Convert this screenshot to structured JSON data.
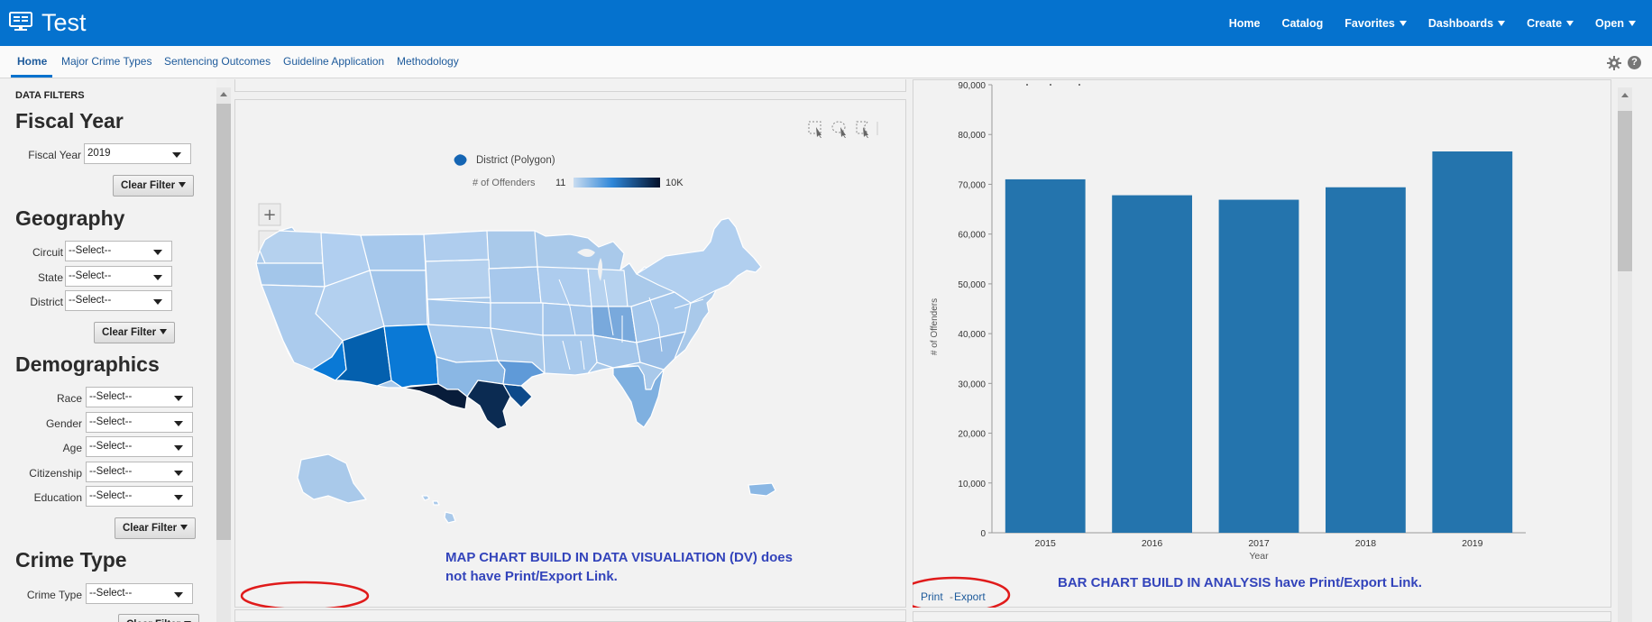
{
  "app": {
    "title": "Test"
  },
  "topnav": [
    {
      "label": "Home",
      "has_caret": false
    },
    {
      "label": "Catalog",
      "has_caret": false
    },
    {
      "label": "Favorites",
      "has_caret": true
    },
    {
      "label": "Dashboards",
      "has_caret": true
    },
    {
      "label": "Create",
      "has_caret": true
    },
    {
      "label": "Open",
      "has_caret": true
    }
  ],
  "tabs": [
    "Home",
    "Major Crime Types",
    "Sentencing Outcomes",
    "Guideline Application",
    "Methodology"
  ],
  "sidebar": {
    "header": "DATA FILTERS",
    "fiscal_year": {
      "heading": "Fiscal Year",
      "label": "Fiscal Year",
      "value": "2019"
    },
    "geography": {
      "heading": "Geography",
      "circuit_label": "Circuit",
      "state_label": "State",
      "district_label": "District"
    },
    "demographics": {
      "heading": "Demographics",
      "race_label": "Race",
      "gender_label": "Gender",
      "age_label": "Age",
      "citizenship_label": "Citizenship",
      "education_label": "Education"
    },
    "crime_type": {
      "heading": "Crime Type",
      "label": "Crime Type"
    },
    "select_placeholder": "--Select--",
    "clear_filter": "Clear Filter"
  },
  "map": {
    "legend_polygon_label": "District (Polygon)",
    "legend_measure_label": "# of Offenders",
    "legend_min": "11",
    "legend_max": "10K",
    "zoom_in": "+",
    "zoom_out": "−",
    "annotation_line1": "MAP CHART BUILD IN DATA VISUALIATION (DV) does",
    "annotation_line2": "not have Print/Export Link.",
    "colors": {
      "light": "#a9c9ea",
      "mid": "#0a79d6",
      "dark": "#0b2545",
      "accent": "#1565b3"
    }
  },
  "bar": {
    "annotation": "BAR CHART BUILD IN ANALYSIS have Print/Export Link.",
    "print_label": "Print",
    "separator": "-",
    "export_label": "Export"
  },
  "chart_data": {
    "type": "bar",
    "categories": [
      "2015",
      "2016",
      "2017",
      "2018",
      "2019"
    ],
    "values": [
      71000,
      67800,
      66900,
      69400,
      76600
    ],
    "title": "",
    "xlabel": "Year",
    "ylabel": "# of Offenders",
    "ylim": [
      0,
      90000
    ],
    "yticks": [
      "0",
      "10,000",
      "20,000",
      "30,000",
      "40,000",
      "50,000",
      "60,000",
      "70,000",
      "80,000",
      "90,000"
    ],
    "bar_color": "#2474ad",
    "grid": false
  }
}
